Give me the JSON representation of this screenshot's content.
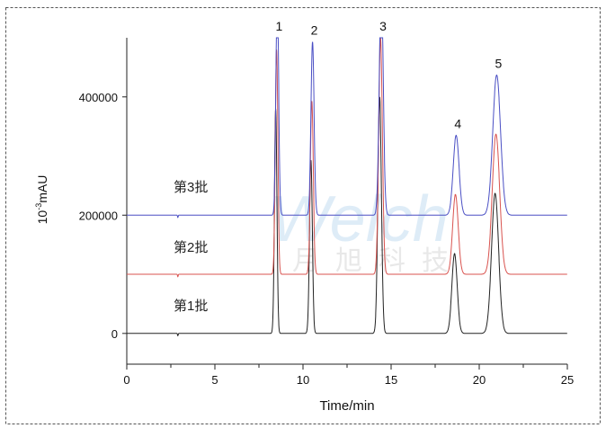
{
  "chart_data": {
    "type": "line",
    "title": "",
    "xlabel": "Time/min",
    "ylabel": "10-3mAU",
    "ylabel_parts": {
      "base": "10",
      "exp": "-3",
      "unit": "mAU"
    },
    "xlim": [
      0,
      25
    ],
    "ylim": [
      -52000,
      500000
    ],
    "x_ticks": [
      "0",
      "5",
      "10",
      "15",
      "20",
      "25"
    ],
    "x_minor_step": 2.5,
    "y_ticks": [
      "0",
      "200000",
      "400000"
    ],
    "grid": false,
    "peaks": [
      {
        "label": "1",
        "time": 8.5,
        "height": 380000,
        "width": 0.07
      },
      {
        "label": "2",
        "time": 10.5,
        "height": 293000,
        "width": 0.08
      },
      {
        "label": "3",
        "time": 14.4,
        "height": 400000,
        "width": 0.1
      },
      {
        "label": "4",
        "time": 18.65,
        "height": 135000,
        "width": 0.15
      },
      {
        "label": "5",
        "time": 20.95,
        "height": 237000,
        "width": 0.2
      }
    ],
    "baseline_dip": {
      "time": 2.9,
      "depth": 4000
    },
    "series": [
      {
        "name": "第1批",
        "offset": 0,
        "color": "#222222",
        "shift": -0.05
      },
      {
        "name": "第2批",
        "offset": 100000,
        "color": "#d9534f",
        "shift": 0.0
      },
      {
        "name": "第3批",
        "offset": 200000,
        "color": "#4a4fc4",
        "shift": 0.04
      }
    ]
  },
  "watermark": {
    "latin": "Welch",
    "chinese": "月旭科技"
  }
}
